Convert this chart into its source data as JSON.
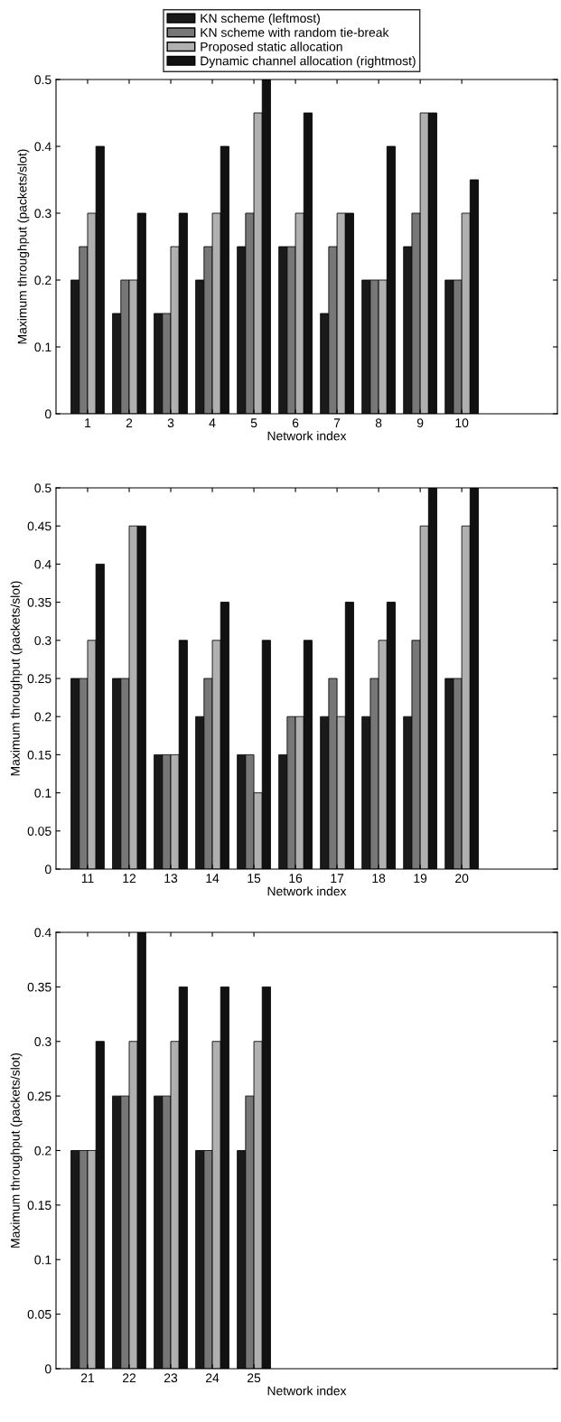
{
  "chart_data": [
    {
      "type": "bar",
      "xlabel": "Network index",
      "ylabel": "Maximum throughput (packets/slot)",
      "x": [
        1,
        2,
        3,
        4,
        5,
        6,
        7,
        8,
        9,
        10
      ],
      "xlim": [
        0.24,
        12.3
      ],
      "xticks": [
        1,
        2,
        3,
        4,
        5,
        6,
        7,
        8,
        9,
        10
      ],
      "ylim": [
        0,
        0.5
      ],
      "yticks": [
        0,
        0.1,
        0.2,
        0.3,
        0.4,
        0.5
      ],
      "legend": "top",
      "grid": false,
      "series": [
        {
          "name": "KN scheme (leftmost)",
          "color": "#1a1a1a",
          "values": [
            0.2,
            0.15,
            0.15,
            0.2,
            0.25,
            0.25,
            0.15,
            0.2,
            0.25,
            0.2
          ]
        },
        {
          "name": "KN scheme with random tie-break",
          "color": "#777777",
          "values": [
            0.25,
            0.2,
            0.15,
            0.25,
            0.3,
            0.25,
            0.25,
            0.2,
            0.3,
            0.2
          ]
        },
        {
          "name": "Proposed static allocation",
          "color": "#b0b0b0",
          "values": [
            0.3,
            0.2,
            0.25,
            0.3,
            0.45,
            0.3,
            0.3,
            0.2,
            0.45,
            0.3
          ]
        },
        {
          "name": "Dynamic channel allocation (rightmost)",
          "color": "#111111",
          "values": [
            0.4,
            0.3,
            0.3,
            0.4,
            0.5,
            0.45,
            0.3,
            0.4,
            0.45,
            0.35
          ]
        }
      ]
    },
    {
      "type": "bar",
      "xlabel": "Network index",
      "ylabel": "Maximum throughput (packets/slot)",
      "x": [
        11,
        12,
        13,
        14,
        15,
        16,
        17,
        18,
        19,
        20
      ],
      "xlim": [
        10.24,
        22.3
      ],
      "xticks": [
        11,
        12,
        13,
        14,
        15,
        16,
        17,
        18,
        19,
        20
      ],
      "ylim": [
        0,
        0.5
      ],
      "yticks": [
        0,
        0.05,
        0.1,
        0.15,
        0.2,
        0.25,
        0.3,
        0.35,
        0.4,
        0.45,
        0.5
      ],
      "grid": false,
      "series": [
        {
          "color": "#1a1a1a",
          "values": [
            0.25,
            0.25,
            0.15,
            0.2,
            0.15,
            0.15,
            0.2,
            0.2,
            0.2,
            0.25
          ]
        },
        {
          "color": "#777777",
          "values": [
            0.25,
            0.25,
            0.15,
            0.25,
            0.15,
            0.2,
            0.25,
            0.25,
            0.3,
            0.25
          ]
        },
        {
          "color": "#b0b0b0",
          "values": [
            0.3,
            0.45,
            0.15,
            0.3,
            0.1,
            0.2,
            0.2,
            0.3,
            0.45,
            0.45
          ]
        },
        {
          "color": "#111111",
          "values": [
            0.4,
            0.45,
            0.3,
            0.35,
            0.3,
            0.3,
            0.35,
            0.35,
            0.5,
            0.5
          ]
        }
      ]
    },
    {
      "type": "bar",
      "xlabel": "Network index",
      "ylabel": "Maximum throughput (packets/slot)",
      "x": [
        21,
        22,
        23,
        24,
        25
      ],
      "xlim": [
        20.24,
        32.3
      ],
      "xticks": [
        21,
        22,
        23,
        24,
        25
      ],
      "ylim": [
        0,
        0.4
      ],
      "yticks": [
        0,
        0.05,
        0.1,
        0.15,
        0.2,
        0.25,
        0.3,
        0.35,
        0.4
      ],
      "grid": false,
      "series": [
        {
          "color": "#1a1a1a",
          "values": [
            0.2,
            0.25,
            0.25,
            0.2,
            0.2
          ]
        },
        {
          "color": "#777777",
          "values": [
            0.2,
            0.25,
            0.25,
            0.2,
            0.25
          ]
        },
        {
          "color": "#b0b0b0",
          "values": [
            0.2,
            0.3,
            0.3,
            0.3,
            0.3
          ]
        },
        {
          "color": "#111111",
          "values": [
            0.3,
            0.4,
            0.35,
            0.35,
            0.35
          ]
        }
      ]
    }
  ]
}
